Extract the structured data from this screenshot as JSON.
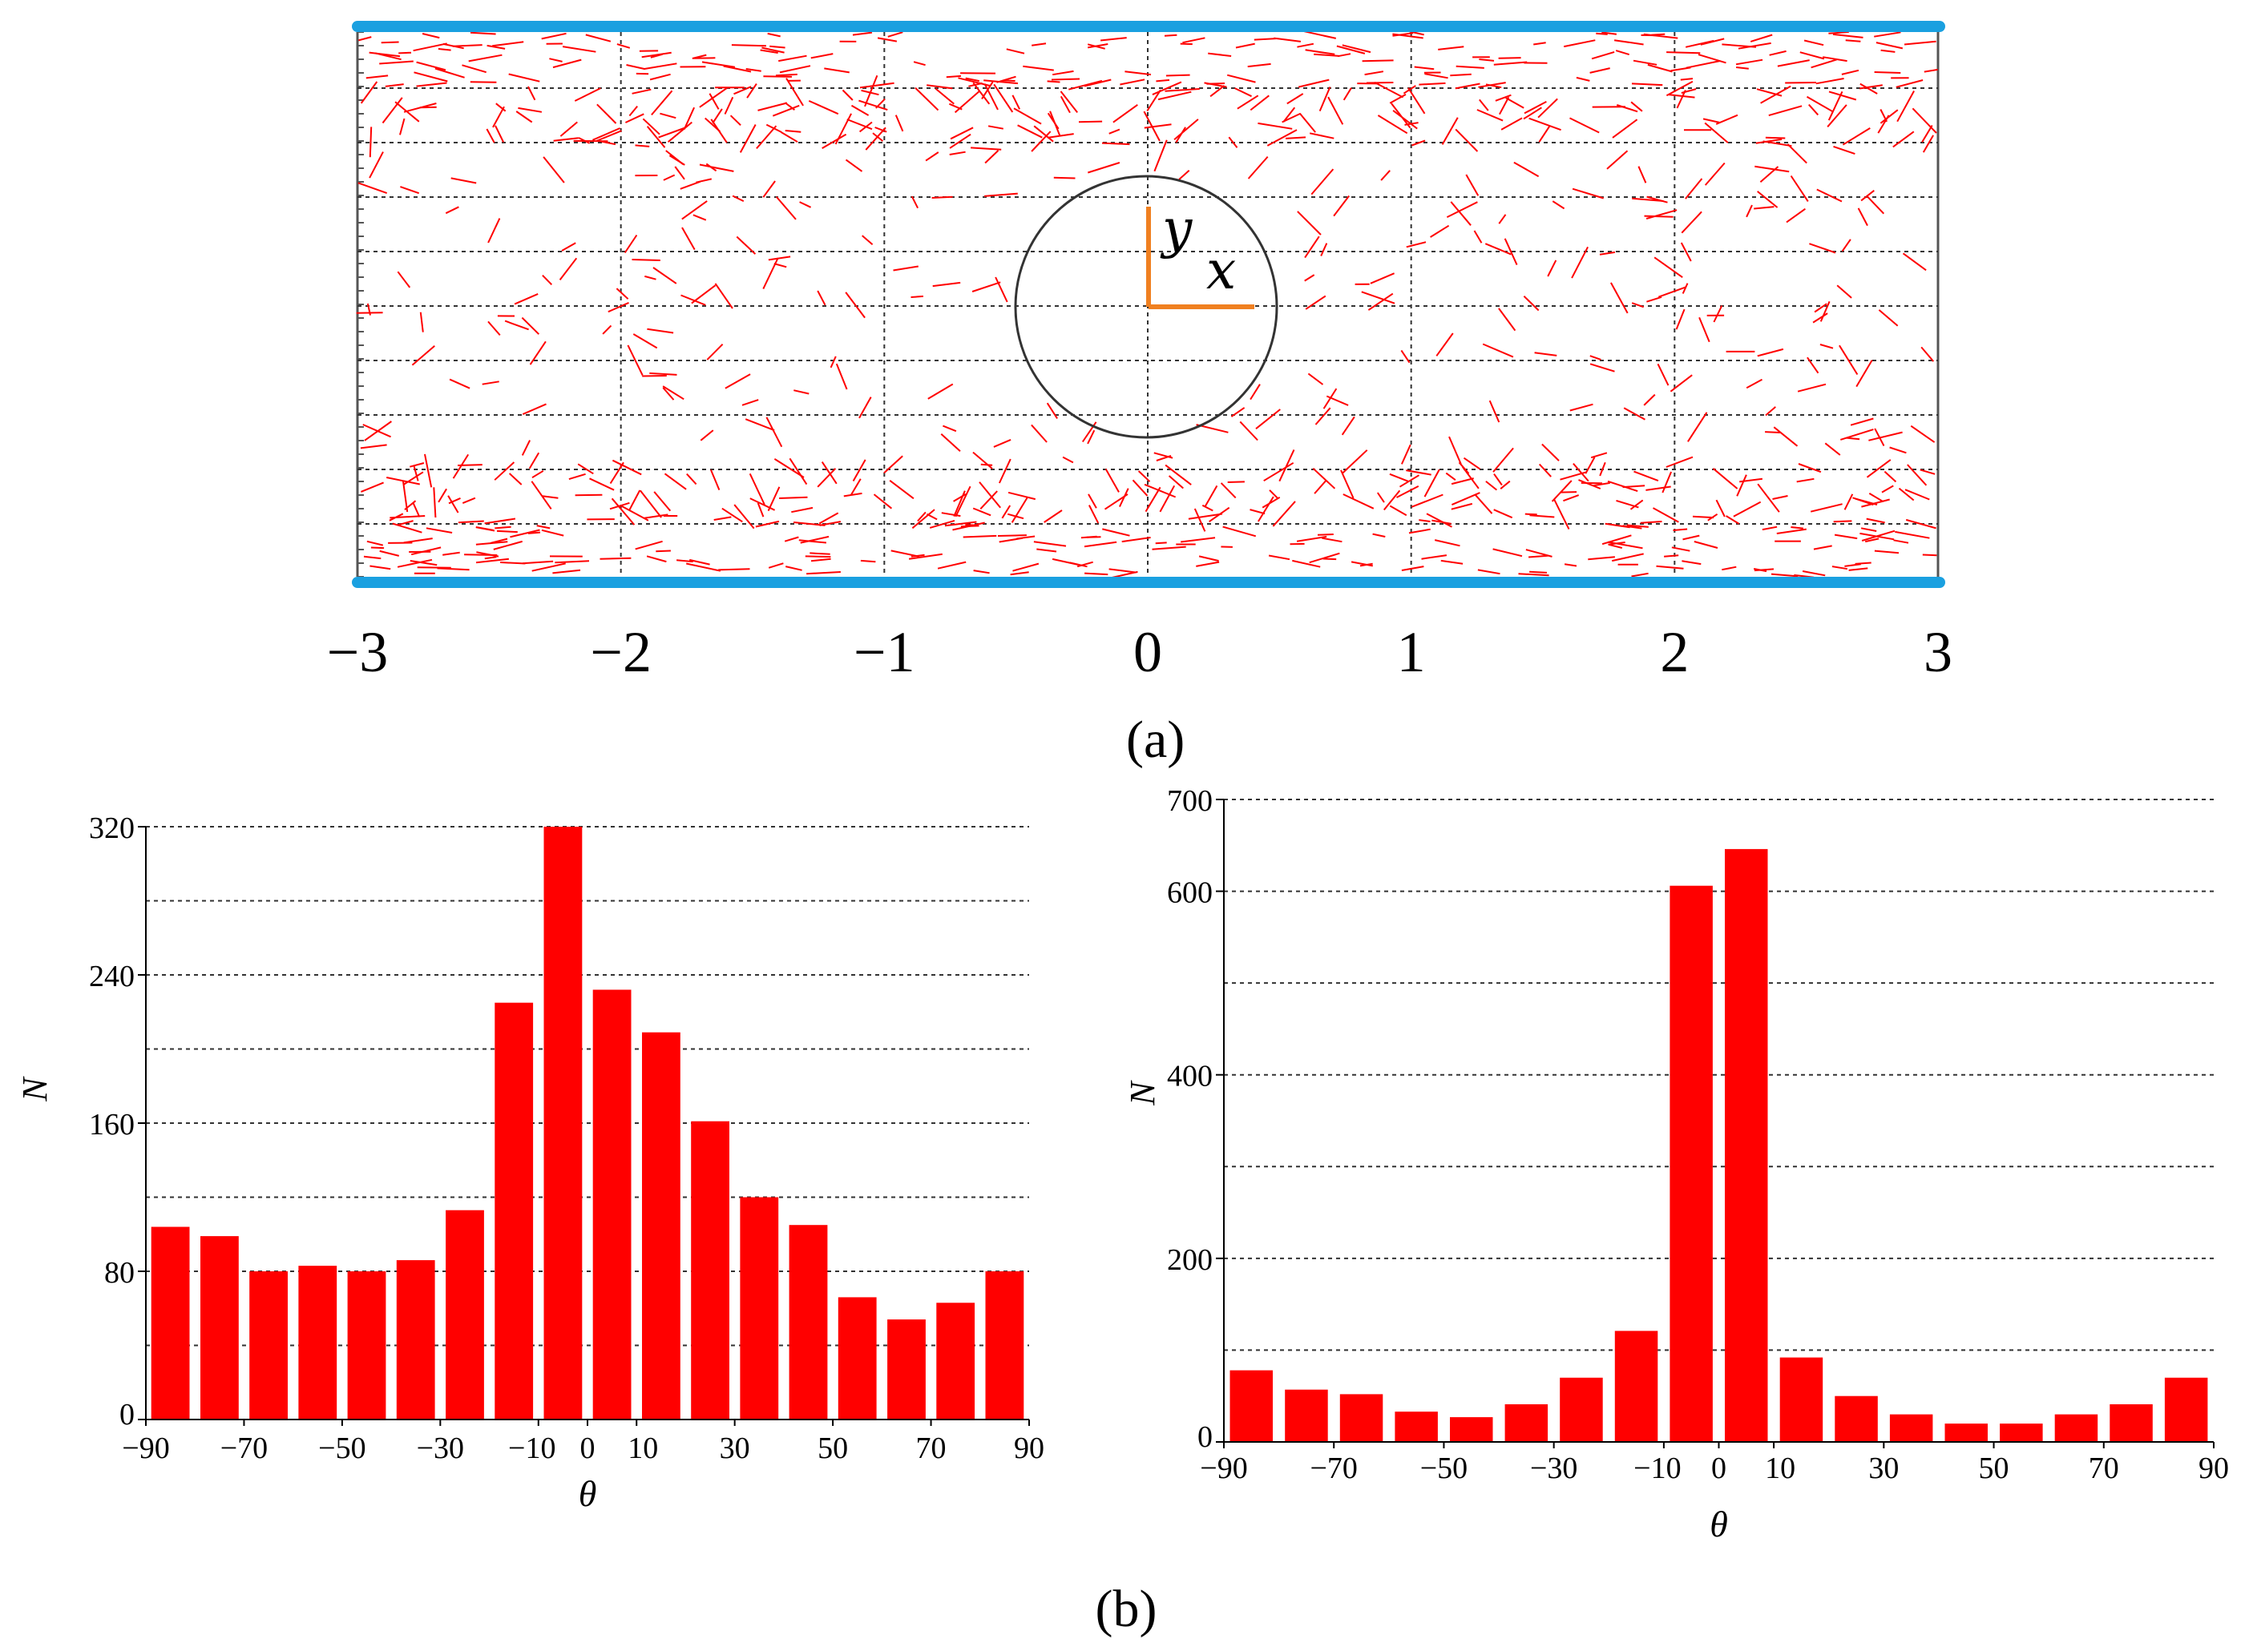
{
  "panel_labels": {
    "a": "(a)",
    "b": "(b)"
  },
  "flow_field": {
    "x_ticks": [
      "−3",
      "−2",
      "−1",
      "0",
      "1",
      "2",
      "3"
    ],
    "x_range": [
      -3,
      3
    ],
    "axis_x_label": "x",
    "axis_y_label": "y",
    "colors": {
      "vectors": "#ff0000",
      "walls": "#1aa0e0",
      "axes": "#f08020",
      "grid": "#333333"
    }
  },
  "chart_data": [
    {
      "type": "bar",
      "title": "",
      "xlabel": "θ",
      "ylabel": "N",
      "ylim": [
        0,
        320
      ],
      "categories": [
        -85,
        -75,
        -65,
        -55,
        -45,
        -35,
        -25,
        -15,
        -5,
        5,
        15,
        25,
        35,
        45,
        55,
        65,
        75,
        85
      ],
      "values": [
        104,
        99,
        80,
        83,
        80,
        86,
        113,
        225,
        320,
        232,
        209,
        161,
        120,
        105,
        66,
        54,
        63,
        80
      ],
      "y_ticks": [
        0,
        80,
        160,
        240,
        320
      ],
      "x_ticks": [
        "−90",
        "−70",
        "−50",
        "−30",
        "−10",
        "0",
        "10",
        "30",
        "50",
        "70",
        "90"
      ],
      "grid": "dashed horizontal",
      "color": "#ff0000"
    },
    {
      "type": "bar",
      "title": "",
      "xlabel": "θ",
      "ylabel": "N",
      "ylim": [
        0,
        700
      ],
      "categories": [
        -85,
        -75,
        -65,
        -55,
        -45,
        -35,
        -25,
        -15,
        -5,
        5,
        15,
        25,
        35,
        45,
        55,
        65,
        75,
        85
      ],
      "values": [
        78,
        57,
        52,
        33,
        27,
        41,
        70,
        121,
        606,
        646,
        92,
        50,
        30,
        20,
        20,
        30,
        41,
        70
      ],
      "y_ticks": [
        0,
        200,
        400,
        600,
        700
      ],
      "x_ticks": [
        "−90",
        "−70",
        "−50",
        "−30",
        "−10",
        "0",
        "10",
        "30",
        "50",
        "70",
        "90"
      ],
      "grid": "dashed horizontal",
      "color": "#ff0000"
    }
  ]
}
